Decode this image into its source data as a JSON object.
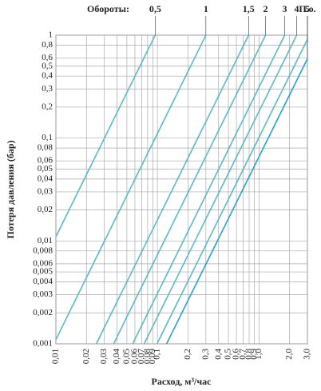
{
  "chart_data": {
    "type": "line",
    "log_x": true,
    "log_y": true,
    "grid": true,
    "xlabel": "Расход, м³/час",
    "ylabel": "Потеря давления (бар)",
    "series_label_title": "Обороты:",
    "xlim": [
      0.01,
      3.0
    ],
    "ylim": [
      0.001,
      1
    ],
    "xticks": [
      {
        "value": 0.01,
        "label": "0,01"
      },
      {
        "value": 0.02,
        "label": "0,02"
      },
      {
        "value": 0.03,
        "label": "0,03"
      },
      {
        "value": 0.04,
        "label": "0,04"
      },
      {
        "value": 0.05,
        "label": "0,05"
      },
      {
        "value": 0.06,
        "label": "0,06"
      },
      {
        "value": 0.07,
        "label": "0,07"
      },
      {
        "value": 0.08,
        "label": "0,08"
      },
      {
        "value": 0.09,
        "label": "0,09"
      },
      {
        "value": 0.1,
        "label": "0,1"
      },
      {
        "value": 0.2,
        "label": "0,2"
      },
      {
        "value": 0.3,
        "label": "0,3"
      },
      {
        "value": 0.4,
        "label": "0,4"
      },
      {
        "value": 0.5,
        "label": "0,5"
      },
      {
        "value": 0.6,
        "label": "0,6"
      },
      {
        "value": 0.7,
        "label": "0,7"
      },
      {
        "value": 0.8,
        "label": "0,8"
      },
      {
        "value": 0.9,
        "label": "0,9"
      },
      {
        "value": 1.0,
        "label": "1,0"
      },
      {
        "value": 2.0,
        "label": "2,0"
      },
      {
        "value": 3.0,
        "label": "3,0"
      }
    ],
    "yticks": [
      {
        "value": 0.001,
        "label": "0,001"
      },
      {
        "value": 0.002,
        "label": "0,002"
      },
      {
        "value": 0.003,
        "label": "0,003"
      },
      {
        "value": 0.004,
        "label": "0,004"
      },
      {
        "value": 0.005,
        "label": "0,005"
      },
      {
        "value": 0.006,
        "label": "0,006"
      },
      {
        "value": 0.008,
        "label": "0,008"
      },
      {
        "value": 0.01,
        "label": "0,01"
      },
      {
        "value": 0.02,
        "label": "0,02"
      },
      {
        "value": 0.03,
        "label": "0,03"
      },
      {
        "value": 0.04,
        "label": "0,04"
      },
      {
        "value": 0.05,
        "label": "0,05"
      },
      {
        "value": 0.06,
        "label": "0,06"
      },
      {
        "value": 0.08,
        "label": "0,08"
      },
      {
        "value": 0.1,
        "label": "0,1"
      },
      {
        "value": 0.2,
        "label": "0,2"
      },
      {
        "value": 0.3,
        "label": "0,3"
      },
      {
        "value": 0.4,
        "label": "0,4"
      },
      {
        "value": 0.5,
        "label": "0,5"
      },
      {
        "value": 0.6,
        "label": "0,6"
      },
      {
        "value": 0.8,
        "label": "0,8"
      },
      1
    ],
    "series": [
      {
        "name": "0,5",
        "color": "#5bb8c6",
        "x": [
          0.01,
          0.095
        ],
        "values": [
          0.011,
          1
        ]
      },
      {
        "name": "1",
        "color": "#5bb8c6",
        "x": [
          0.01,
          0.3
        ],
        "values": [
          0.0011,
          1
        ]
      },
      {
        "name": "1,5",
        "color": "#5bb8c6",
        "x": [
          0.025,
          0.79
        ],
        "values": [
          0.001,
          1
        ]
      },
      {
        "name": "2",
        "color": "#5bb8c6",
        "x": [
          0.037,
          1.16
        ],
        "values": [
          0.001,
          1
        ]
      },
      {
        "name": "3",
        "color": "#5bb8c6",
        "x": [
          0.057,
          1.79
        ],
        "values": [
          0.001,
          1
        ]
      },
      {
        "name": "4",
        "color": "#5bb8c6",
        "x": [
          0.074,
          2.35
        ],
        "values": [
          0.001,
          1
        ]
      },
      {
        "name": "5",
        "color": "#5bb8c6",
        "x": [
          0.099,
          3.0
        ],
        "values": [
          0.001,
          0.91
        ]
      },
      {
        "name": "П.о.",
        "color": "#2a9fd0",
        "x": [
          0.123,
          3.0
        ],
        "values": [
          0.001,
          0.59
        ]
      }
    ]
  }
}
